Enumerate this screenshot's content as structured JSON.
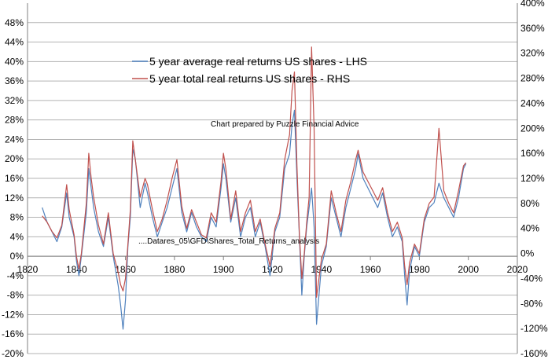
{
  "chart_data": {
    "type": "line",
    "title": "",
    "xlabel": "",
    "ylabel_left": "",
    "ylabel_right": "",
    "xlim": [
      1820,
      2020
    ],
    "x_ticks": [
      1820,
      1840,
      1860,
      1880,
      1900,
      1920,
      1940,
      1960,
      1980,
      2000,
      2020
    ],
    "x_tick_labels": [
      "1820",
      "1840",
      "1860",
      "1880",
      "1900",
      "1920",
      "1940",
      "1960",
      "1980",
      "2000",
      "2020"
    ],
    "ylim_left": [
      -20,
      52
    ],
    "ylim_right": [
      -160,
      400
    ],
    "y_left_ticks": [
      -20,
      -16,
      -12,
      -8,
      -4,
      0,
      4,
      8,
      12,
      16,
      20,
      24,
      28,
      32,
      36,
      40,
      44,
      48
    ],
    "y_left_tick_labels": [
      "-20%",
      "-16%",
      "-12%",
      "-8%",
      "-4%",
      "0%",
      "4%",
      "8%",
      "12%",
      "16%",
      "20%",
      "24%",
      "28%",
      "32%",
      "36%",
      "40%",
      "44%",
      "48%"
    ],
    "y_right_ticks": [
      -160,
      -120,
      -80,
      -40,
      0,
      40,
      80,
      120,
      160,
      200,
      240,
      280,
      320,
      360,
      400
    ],
    "y_right_tick_labels": [
      "-160%",
      "-120%",
      "-80%",
      "-40%",
      "0%",
      "40%",
      "80%",
      "120%",
      "160%",
      "200%",
      "240%",
      "280%",
      "320%",
      "360%",
      "400%"
    ],
    "grid": "horizontal",
    "legend_position": "top-center",
    "annotations": [
      "Chart prepared by Puzzle Financial Advice",
      "....Datares_05\\GFD\\Shares_Total_Returns_analysis"
    ],
    "series": [
      {
        "name": "5 year average real returns US shares - LHS",
        "axis": "left",
        "color": "#4F81BD",
        "x": [
          1826,
          1828,
          1830,
          1832,
          1834,
          1836,
          1837,
          1839,
          1840,
          1841,
          1842,
          1844,
          1845,
          1846,
          1847,
          1849,
          1851,
          1853,
          1855,
          1857,
          1858,
          1859,
          1860,
          1861,
          1862,
          1863,
          1864,
          1866,
          1868,
          1869,
          1871,
          1873,
          1875,
          1877,
          1879,
          1881,
          1883,
          1885,
          1887,
          1889,
          1891,
          1893,
          1895,
          1897,
          1899,
          1900,
          1901,
          1903,
          1905,
          1907,
          1909,
          1911,
          1913,
          1915,
          1917,
          1919,
          1921,
          1923,
          1925,
          1927,
          1928,
          1929,
          1930,
          1931,
          1932,
          1933,
          1934,
          1935,
          1936,
          1937,
          1938,
          1940,
          1942,
          1944,
          1946,
          1948,
          1950,
          1952,
          1954,
          1955,
          1957,
          1959,
          1961,
          1963,
          1965,
          1967,
          1969,
          1971,
          1973,
          1974,
          1975,
          1976,
          1978,
          1980,
          1982,
          1984,
          1986,
          1988,
          1990,
          1992,
          1994,
          1996,
          1998,
          1999
        ],
        "y": [
          10,
          7,
          5,
          3,
          6,
          13,
          8,
          4,
          -1,
          -4,
          0,
          9,
          18,
          14,
          10,
          5,
          2,
          8,
          0,
          -6,
          -10,
          -15,
          -9,
          2,
          8,
          22,
          20,
          10,
          15,
          13,
          8,
          4,
          7,
          10,
          14,
          18,
          9,
          5,
          9,
          6,
          4,
          3,
          8,
          6,
          14,
          19,
          16,
          7,
          12,
          4,
          8,
          10,
          4,
          7,
          2,
          -4,
          5,
          8,
          18,
          21,
          27,
          30,
          16,
          4,
          -8,
          0,
          6,
          10,
          14,
          6,
          -14,
          -2,
          2,
          12,
          8,
          4,
          10,
          14,
          18,
          21,
          16,
          14,
          12,
          10,
          13,
          8,
          4,
          6,
          3,
          -4,
          -10,
          -3,
          2,
          0,
          7,
          10,
          11,
          15,
          12,
          10,
          8,
          12,
          18,
          19
        ]
      },
      {
        "name": "5 year total real returns US shares - RHS",
        "axis": "right",
        "color": "#C0504D",
        "x": [
          1826,
          1828,
          1830,
          1832,
          1834,
          1836,
          1837,
          1839,
          1840,
          1841,
          1842,
          1844,
          1845,
          1846,
          1847,
          1849,
          1851,
          1853,
          1855,
          1857,
          1858,
          1859,
          1860,
          1861,
          1862,
          1863,
          1864,
          1866,
          1868,
          1869,
          1871,
          1873,
          1875,
          1877,
          1879,
          1881,
          1883,
          1885,
          1887,
          1889,
          1891,
          1893,
          1895,
          1897,
          1899,
          1900,
          1901,
          1903,
          1905,
          1907,
          1909,
          1911,
          1913,
          1915,
          1917,
          1919,
          1921,
          1923,
          1925,
          1927,
          1928,
          1929,
          1930,
          1931,
          1932,
          1933,
          1934,
          1935,
          1936,
          1937,
          1938,
          1940,
          1942,
          1944,
          1946,
          1948,
          1950,
          1952,
          1954,
          1955,
          1957,
          1959,
          1961,
          1963,
          1965,
          1967,
          1969,
          1971,
          1973,
          1974,
          1975,
          1976,
          1978,
          1980,
          1982,
          1984,
          1986,
          1988,
          1990,
          1992,
          1994,
          1996,
          1998,
          1999
        ],
        "y": [
          60,
          50,
          35,
          25,
          45,
          110,
          70,
          30,
          -5,
          -25,
          0,
          80,
          160,
          120,
          90,
          45,
          15,
          65,
          0,
          -30,
          -50,
          -60,
          -40,
          15,
          70,
          180,
          150,
          90,
          120,
          110,
          70,
          35,
          55,
          85,
          120,
          150,
          75,
          40,
          70,
          50,
          30,
          25,
          65,
          50,
          115,
          160,
          135,
          55,
          100,
          35,
          65,
          85,
          35,
          55,
          15,
          -20,
          40,
          65,
          150,
          190,
          260,
          290,
          140,
          30,
          -40,
          0,
          50,
          90,
          330,
          200,
          -70,
          -10,
          15,
          100,
          65,
          35,
          85,
          115,
          150,
          165,
          130,
          115,
          100,
          85,
          105,
          65,
          35,
          50,
          25,
          -20,
          -50,
          -15,
          15,
          0,
          55,
          80,
          90,
          200,
          100,
          80,
          65,
          100,
          140,
          145
        ]
      }
    ]
  }
}
